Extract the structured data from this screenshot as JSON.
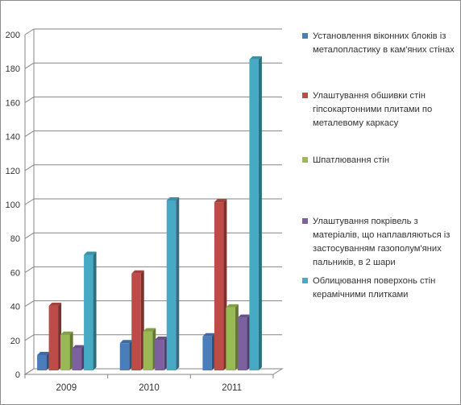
{
  "chart_data": {
    "type": "bar",
    "categories": [
      "2009",
      "2010",
      "2011"
    ],
    "series": [
      {
        "name": "Установлення віконних блоків із металопластику в кам'яних стінах",
        "values": [
          9,
          16,
          20
        ],
        "color": "#4a7ebb"
      },
      {
        "name": "Улаштування обшивки стін гіпсокартонними плитами по металевому каркасу",
        "values": [
          38,
          57,
          99
        ],
        "color": "#be4b48"
      },
      {
        "name": "Шпатлювання стін",
        "values": [
          21,
          23,
          37
        ],
        "color": "#98b954"
      },
      {
        "name": "Улаштування покрівель з матеріалів, що наплавляються із застосуванням газополум'яних пальників, в 2 шари",
        "values": [
          13,
          18,
          31
        ],
        "color": "#7d60a0"
      },
      {
        "name": "Облицювання поверхонь стін керамічними плитками",
        "values": [
          68,
          100,
          183
        ],
        "color": "#46aac4"
      }
    ],
    "ylim": [
      0,
      200
    ],
    "yticks": [
      0,
      20,
      40,
      60,
      80,
      100,
      120,
      140,
      160,
      180,
      200
    ],
    "ytick_labels": [
      "0",
      "20",
      "40",
      "60",
      "80",
      "100",
      "120",
      "140",
      "160",
      "180",
      "200"
    ],
    "grid": true,
    "legend_position": "right",
    "title": "",
    "xlabel": "",
    "ylabel": ""
  }
}
